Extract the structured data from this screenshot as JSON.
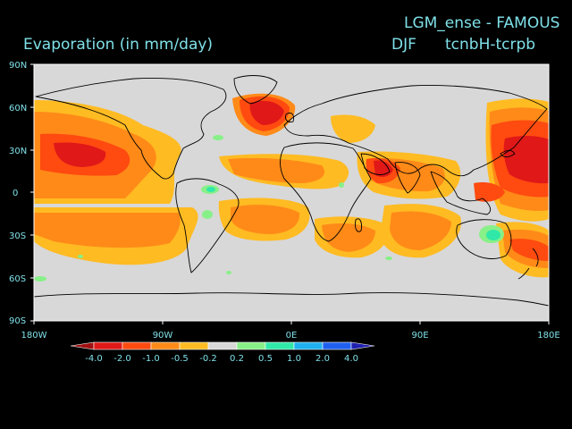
{
  "header": {
    "experiment_title": "LGM_ense - FAMOUS",
    "variable_title": "Evaporation (in mm/day)",
    "season": "DJF",
    "experiment_code": "tcnbH-tcrpb"
  },
  "map": {
    "projection": "equirectangular",
    "lon_range": [
      -180,
      180
    ],
    "lat_range": [
      -90,
      90
    ],
    "lat_ticks": [
      "90N",
      "60N",
      "30N",
      "0",
      "30S",
      "60S",
      "90S"
    ],
    "lon_ticks": [
      "180W",
      "90W",
      "0E",
      "90E",
      "180E"
    ],
    "background_color": "#d8d8d8"
  },
  "colorbar": {
    "labels": [
      "-4.0",
      "-2.0",
      "-1.0",
      "-0.5",
      "-0.2",
      "0.2",
      "0.5",
      "1.0",
      "2.0",
      "4.0"
    ],
    "colors": [
      "#a01010",
      "#e01818",
      "#ff4a10",
      "#ff8a18",
      "#ffbb22",
      "#d8d8d8",
      "#88f088",
      "#30e8a8",
      "#20b0f0",
      "#2060f0",
      "#2020b0"
    ]
  }
}
